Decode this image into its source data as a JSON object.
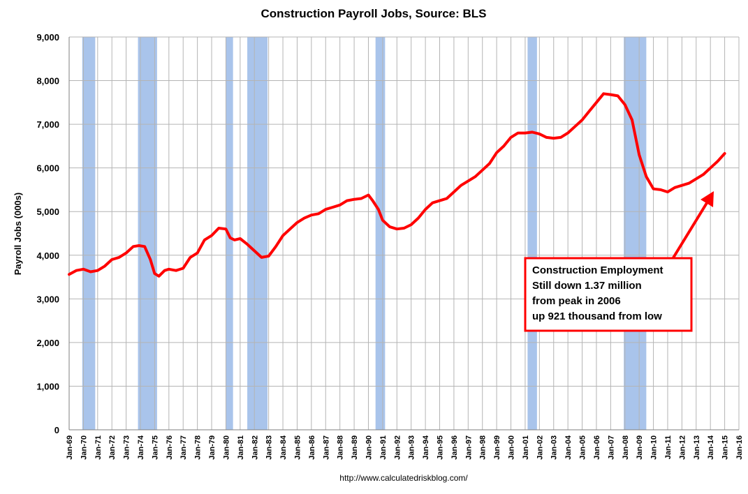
{
  "chart_data": {
    "type": "line",
    "title": "Construction Payroll Jobs, Source: BLS",
    "xlabel": "",
    "ylabel": "Payroll Jobs (000s)",
    "source": "http://www.calculatedriskblog.com/",
    "ylim": [
      0,
      9000
    ],
    "y_ticks": [
      0,
      1000,
      2000,
      3000,
      4000,
      5000,
      6000,
      7000,
      8000,
      9000
    ],
    "y_tick_labels": [
      "0",
      "1,000",
      "2,000",
      "3,000",
      "4,000",
      "5,000",
      "6,000",
      "7,000",
      "8,000",
      "9,000"
    ],
    "x_range": [
      1969,
      2016
    ],
    "x_tick_labels": [
      "Jan-69",
      "Jan-70",
      "Jan-71",
      "Jan-72",
      "Jan-73",
      "Jan-74",
      "Jan-75",
      "Jan-76",
      "Jan-77",
      "Jan-78",
      "Jan-79",
      "Jan-80",
      "Jan-81",
      "Jan-82",
      "Jan-83",
      "Jan-84",
      "Jan-85",
      "Jan-86",
      "Jan-87",
      "Jan-88",
      "Jan-89",
      "Jan-90",
      "Jan-91",
      "Jan-92",
      "Jan-93",
      "Jan-94",
      "Jan-95",
      "Jan-96",
      "Jan-97",
      "Jan-98",
      "Jan-99",
      "Jan-00",
      "Jan-01",
      "Jan-02",
      "Jan-03",
      "Jan-04",
      "Jan-05",
      "Jan-06",
      "Jan-07",
      "Jan-08",
      "Jan-09",
      "Jan-10",
      "Jan-11",
      "Jan-12",
      "Jan-13",
      "Jan-14",
      "Jan-15",
      "Jan-16"
    ],
    "grid": true,
    "recessions": [
      [
        1969.92,
        1970.83
      ],
      [
        1973.83,
        1975.17
      ],
      [
        1980.0,
        1980.5
      ],
      [
        1981.5,
        1982.92
      ],
      [
        1990.5,
        1991.17
      ],
      [
        2001.17,
        2001.83
      ],
      [
        2007.92,
        2009.5
      ]
    ],
    "series": [
      {
        "color": "#ff0000",
        "x": [
          1969.0,
          1969.5,
          1970.0,
          1970.5,
          1971.0,
          1971.5,
          1972.0,
          1972.5,
          1973.0,
          1973.5,
          1973.9,
          1974.3,
          1974.7,
          1975.0,
          1975.3,
          1975.7,
          1976.0,
          1976.5,
          1977.0,
          1977.5,
          1978.0,
          1978.5,
          1979.0,
          1979.5,
          1980.0,
          1980.3,
          1980.6,
          1981.0,
          1981.5,
          1982.0,
          1982.5,
          1983.0,
          1983.5,
          1984.0,
          1984.5,
          1985.0,
          1985.5,
          1986.0,
          1986.5,
          1987.0,
          1987.5,
          1988.0,
          1988.5,
          1989.0,
          1989.5,
          1990.0,
          1990.3,
          1990.7,
          1991.0,
          1991.5,
          1992.0,
          1992.5,
          1993.0,
          1993.5,
          1994.0,
          1994.5,
          1995.0,
          1995.5,
          1996.0,
          1996.5,
          1997.0,
          1997.5,
          1998.0,
          1998.5,
          1999.0,
          1999.5,
          2000.0,
          2000.5,
          2001.0,
          2001.5,
          2002.0,
          2002.5,
          2003.0,
          2003.5,
          2004.0,
          2004.5,
          2005.0,
          2005.5,
          2006.0,
          2006.5,
          2007.0,
          2007.5,
          2008.0,
          2008.5,
          2009.0,
          2009.5,
          2010.0,
          2010.5,
          2011.0,
          2011.5,
          2012.0,
          2012.5,
          2013.0,
          2013.5,
          2014.0,
          2014.5,
          2015.0
        ],
        "y": [
          3560,
          3650,
          3680,
          3620,
          3650,
          3750,
          3900,
          3950,
          4050,
          4200,
          4220,
          4200,
          3900,
          3580,
          3520,
          3650,
          3680,
          3650,
          3700,
          3950,
          4050,
          4350,
          4450,
          4620,
          4600,
          4400,
          4350,
          4380,
          4250,
          4100,
          3950,
          3980,
          4200,
          4450,
          4600,
          4750,
          4850,
          4920,
          4950,
          5050,
          5100,
          5150,
          5250,
          5280,
          5300,
          5380,
          5250,
          5050,
          4800,
          4650,
          4600,
          4620,
          4700,
          4850,
          5050,
          5200,
          5250,
          5300,
          5450,
          5600,
          5700,
          5800,
          5950,
          6100,
          6350,
          6500,
          6700,
          6800,
          6800,
          6820,
          6780,
          6700,
          6680,
          6700,
          6800,
          6950,
          7100,
          7300,
          7500,
          7700,
          7680,
          7650,
          7450,
          7100,
          6300,
          5800,
          5520,
          5500,
          5450,
          5550,
          5600,
          5650,
          5750,
          5850,
          6000,
          6150,
          6330
        ]
      }
    ],
    "annotation": {
      "lines": [
        "Construction  Employment",
        "Still down 1.37 million",
        "from peak in 2006",
        "up 921 thousand from low"
      ],
      "border_color": "#ff0000",
      "arrow_color": "#ff0000"
    },
    "colors": {
      "recession": "#a9c4eb",
      "grid": "#b4b4b4",
      "line": "#ff0000"
    }
  }
}
